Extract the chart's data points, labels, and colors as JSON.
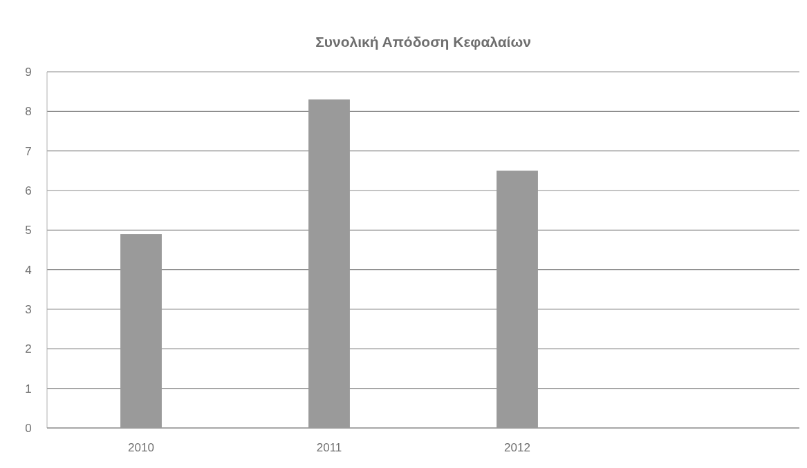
{
  "chart_data": {
    "type": "bar",
    "title": "Συνολική Απόδοση Κεφαλαίων",
    "categories": [
      "2010",
      "2011",
      "2012",
      null
    ],
    "values": [
      4.9,
      8.3,
      6.5,
      null
    ],
    "color": "#9a9a9a",
    "ylim": [
      0,
      9
    ],
    "yticks": [
      0,
      1,
      2,
      3,
      4,
      5,
      6,
      7,
      8,
      9
    ],
    "grid": "y"
  }
}
